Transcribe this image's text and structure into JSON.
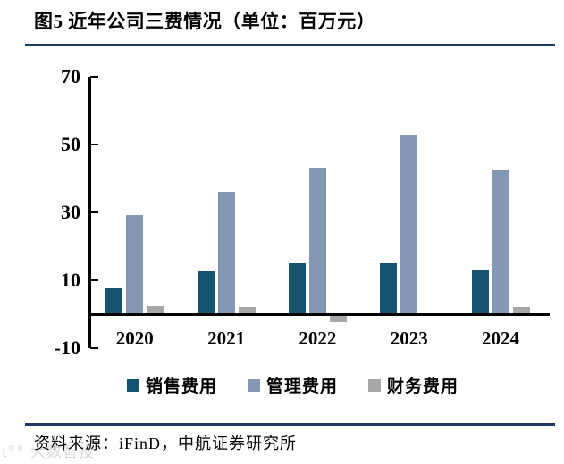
{
  "title": "图5 近年公司三费情况（单位：百万元）",
  "footer": {
    "source_text": "资料来源：iFinD，中航证券研究所"
  },
  "watermark": {
    "icon": "ι°°",
    "text": "大数智投"
  },
  "colors": {
    "rule_navy": "#1f3864",
    "axis_black": "#000000",
    "sales_bar": "#15536e",
    "management_bar": "#8497b3",
    "finance_bar": "#a7a7a7"
  },
  "chart_data": {
    "type": "bar",
    "title": "近年公司三费情况",
    "unit": "百万元",
    "categories": [
      "2020",
      "2021",
      "2022",
      "2023",
      "2024"
    ],
    "series": [
      {
        "name": "销售费用",
        "key": "sales",
        "color": "#15536e",
        "values": [
          7.7,
          12.6,
          15.0,
          15.1,
          12.8
        ]
      },
      {
        "name": "管理费用",
        "key": "management",
        "color": "#8497b3",
        "values": [
          29.2,
          36.1,
          43.2,
          52.9,
          42.4
        ]
      },
      {
        "name": "财务费用",
        "key": "finance",
        "color": "#a7a7a7",
        "values": [
          2.5,
          2.1,
          -2.1,
          0.1,
          2.2
        ]
      }
    ],
    "xlabel": "",
    "ylabel": "",
    "ylim": [
      -10,
      70
    ],
    "yticks": [
      70,
      50,
      30,
      10,
      -10
    ],
    "grid": false,
    "legend_position": "bottom"
  }
}
